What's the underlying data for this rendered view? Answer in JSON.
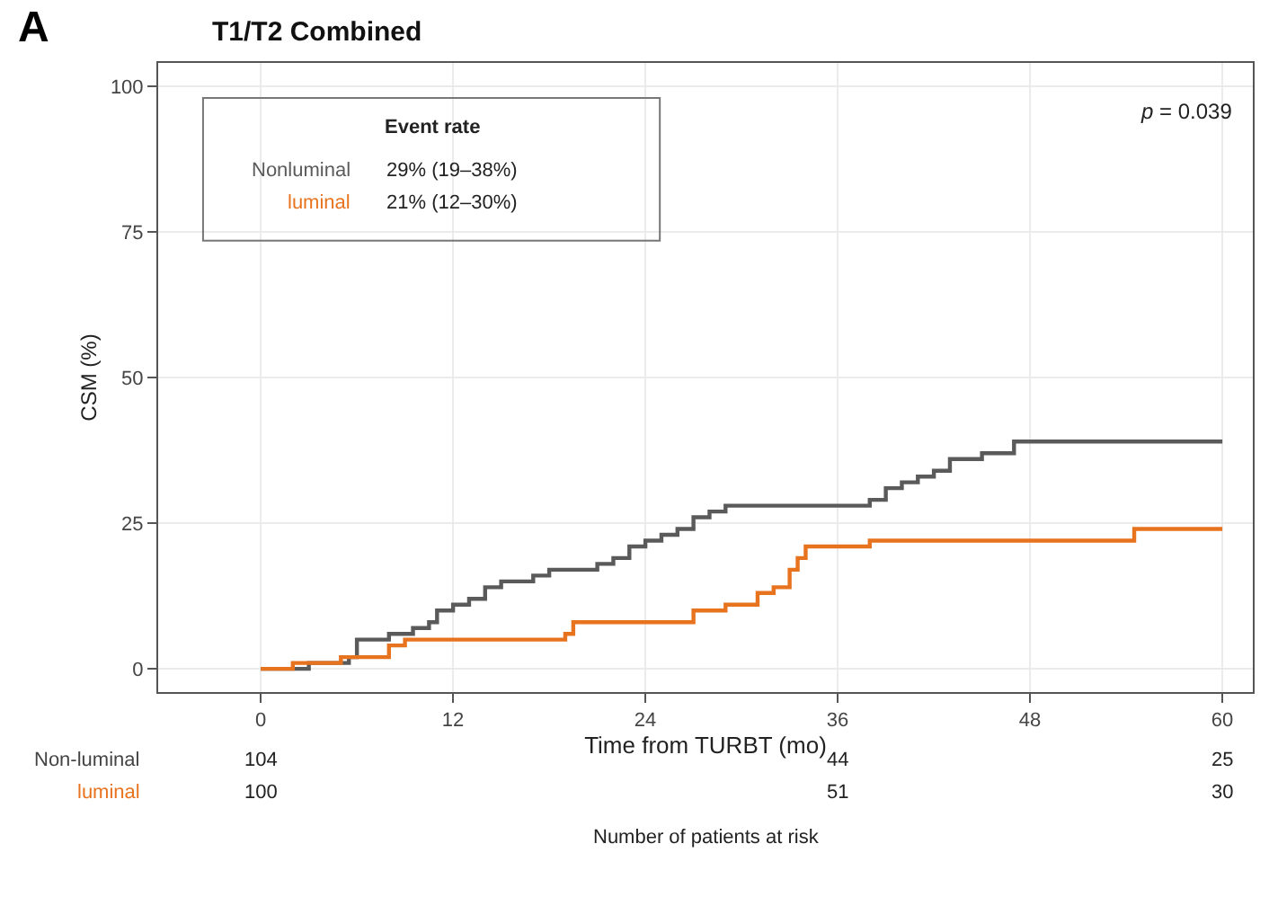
{
  "chart_data": {
    "type": "step",
    "title": "T1/T2 Combined",
    "xlabel": "Time from TURBT (mo)",
    "ylabel": "CSM (%)",
    "legend_title": "Event rate",
    "legend": "top left",
    "grid": true,
    "line_style": "solid",
    "marker": "none",
    "xlim": [
      -6.4,
      61.9
    ],
    "ylim": [
      -4,
      104
    ],
    "xticks": [
      0,
      12,
      24,
      36,
      48,
      60
    ],
    "yticks": [
      0,
      25,
      50,
      75,
      100
    ],
    "series": [
      {
        "name": "Nonluminal",
        "color": "#5a5a5a",
        "x": [
          0,
          3,
          5.5,
          6,
          8,
          9.5,
          10.5,
          11,
          12,
          13,
          14,
          15,
          17,
          18,
          21,
          22,
          23,
          24,
          25,
          26,
          27,
          28,
          29,
          33,
          38,
          39,
          40,
          41,
          42,
          43,
          45,
          47,
          60
        ],
        "values": [
          0,
          1,
          2,
          5,
          6,
          7,
          8,
          10,
          11,
          12,
          14,
          15,
          16,
          17,
          18,
          19,
          21,
          22,
          23,
          24,
          26,
          27,
          28,
          28,
          29,
          31,
          32,
          33,
          34,
          36,
          37,
          39,
          39
        ]
      },
      {
        "name": "luminal",
        "color": "#e8731f",
        "x": [
          0,
          2,
          5,
          8,
          9,
          19,
          19.5,
          27,
          29,
          31,
          32,
          33,
          33.5,
          34,
          38,
          54.5,
          60
        ],
        "values": [
          0,
          1,
          2,
          4,
          5,
          6,
          8,
          10,
          11,
          13,
          14,
          17,
          19,
          21,
          22,
          24,
          24
        ]
      }
    ],
    "annotations": [
      "A",
      "p = 0.039",
      "29% (19–38%)",
      "21% (12–30%)",
      "Non-luminal",
      "luminal",
      "Number of patients at risk",
      "104",
      "44",
      "25",
      "100",
      "51",
      "30"
    ]
  }
}
